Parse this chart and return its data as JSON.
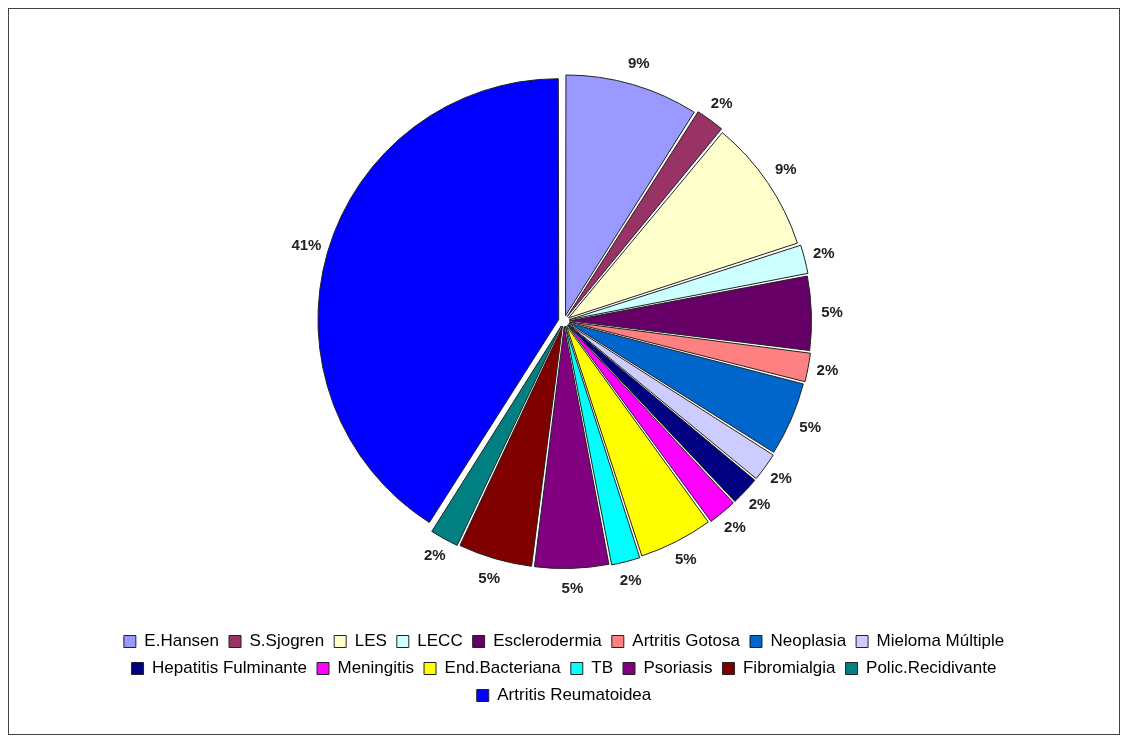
{
  "chart_data": {
    "type": "pie",
    "categories": [
      "E.Hansen",
      "S.Sjogren",
      "LES",
      "LECC",
      "Esclerodermia",
      "Artritis Gotosa",
      "Neoplasia",
      "Mieloma Múltiple",
      "Hepatitis Fulminante",
      "Meningitis",
      "End.Bacteriana",
      "TB",
      "Psoriasis",
      "Fibromialgia",
      "Polic.Recidivante",
      "Artritis Reumatoidea"
    ],
    "values": [
      9,
      2,
      9,
      2,
      5,
      2,
      5,
      2,
      2,
      2,
      5,
      2,
      5,
      5,
      2,
      41
    ],
    "value_labels": [
      "9%",
      "2%",
      "9%",
      "2%",
      "5%",
      "2%",
      "5%",
      "2%",
      "2%",
      "2%",
      "5%",
      "2%",
      "5%",
      "5%",
      "2%",
      "41%"
    ],
    "colors": [
      "#9999ff",
      "#993366",
      "#ffffcc",
      "#ccffff",
      "#660066",
      "#ff8080",
      "#0066cc",
      "#ccccff",
      "#000080",
      "#ff00ff",
      "#ffff00",
      "#00ffff",
      "#800080",
      "#800000",
      "#008080",
      "#0000ff"
    ],
    "legend": "bottom"
  }
}
